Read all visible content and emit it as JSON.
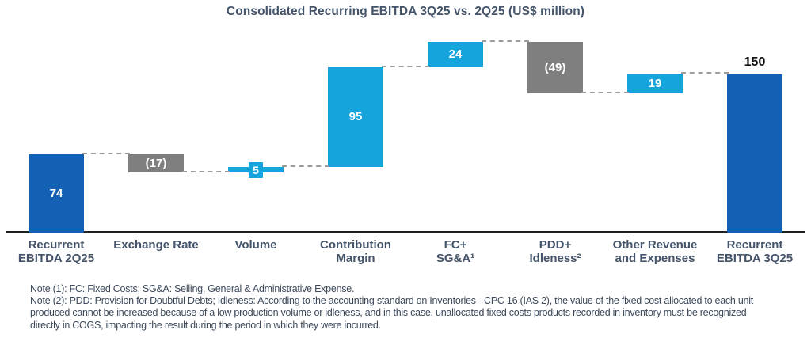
{
  "chart_data": {
    "type": "waterfall",
    "title": "Consolidated Recurring EBITDA 3Q25 vs. 2Q25 (US$ million)",
    "unit": "US$ million",
    "ylim": [
      0,
      190
    ],
    "grid": false,
    "legend": "none",
    "steps": [
      {
        "label": "Recurrent\nEBITDA 2Q25",
        "value": 74,
        "display": "74",
        "kind": "total",
        "color": "dark_blue",
        "value_position": "inside"
      },
      {
        "label": "Exchange Rate",
        "value": -17,
        "display": "(17)",
        "kind": "decrease",
        "color": "gray",
        "value_position": "inside"
      },
      {
        "label": "Volume",
        "value": 5,
        "display": "5",
        "kind": "increase",
        "color": "light_blue",
        "value_position": "chip"
      },
      {
        "label": "Contribution\nMargin",
        "value": 95,
        "display": "95",
        "kind": "increase",
        "color": "light_blue",
        "value_position": "inside"
      },
      {
        "label": "FC+\nSG&A¹",
        "value": 24,
        "display": "24",
        "kind": "increase",
        "color": "light_blue",
        "value_position": "inside"
      },
      {
        "label": "PDD+\nIdleness²",
        "value": -49,
        "display": "(49)",
        "kind": "decrease",
        "color": "gray",
        "value_position": "inside"
      },
      {
        "label": "Other Revenue\nand Expenses",
        "value": 19,
        "display": "19",
        "kind": "increase",
        "color": "light_blue",
        "value_position": "inside"
      },
      {
        "label": "Recurrent\nEBITDA 3Q25",
        "value": 150,
        "display": "150",
        "kind": "total",
        "color": "dark_blue",
        "value_position": "above"
      }
    ],
    "colors": {
      "dark_blue": "#1261B4",
      "light_blue": "#16A4DC",
      "gray": "#7F7F7F",
      "connector": "#9d9d9d",
      "axis": "#1f1f1f",
      "category_text": "#44546A",
      "value_text_inside": "#FFFFFF",
      "value_text_above": "#111111"
    },
    "notes": [
      "Note (1): FC: Fixed Costs; SG&A: Selling, General & Administrative Expense.",
      "Note (2): PDD: Provision for Doubtful Debts; Idleness: According to the accounting standard on Inventories - CPC 16 (IAS 2), the value of the fixed cost allocated to each unit produced cannot be increased because of a low production volume or idleness, and in this case, unallocated fixed costs products recorded in inventory must be recognized directly in COGS, impacting the result during the period in which they were incurred."
    ]
  }
}
